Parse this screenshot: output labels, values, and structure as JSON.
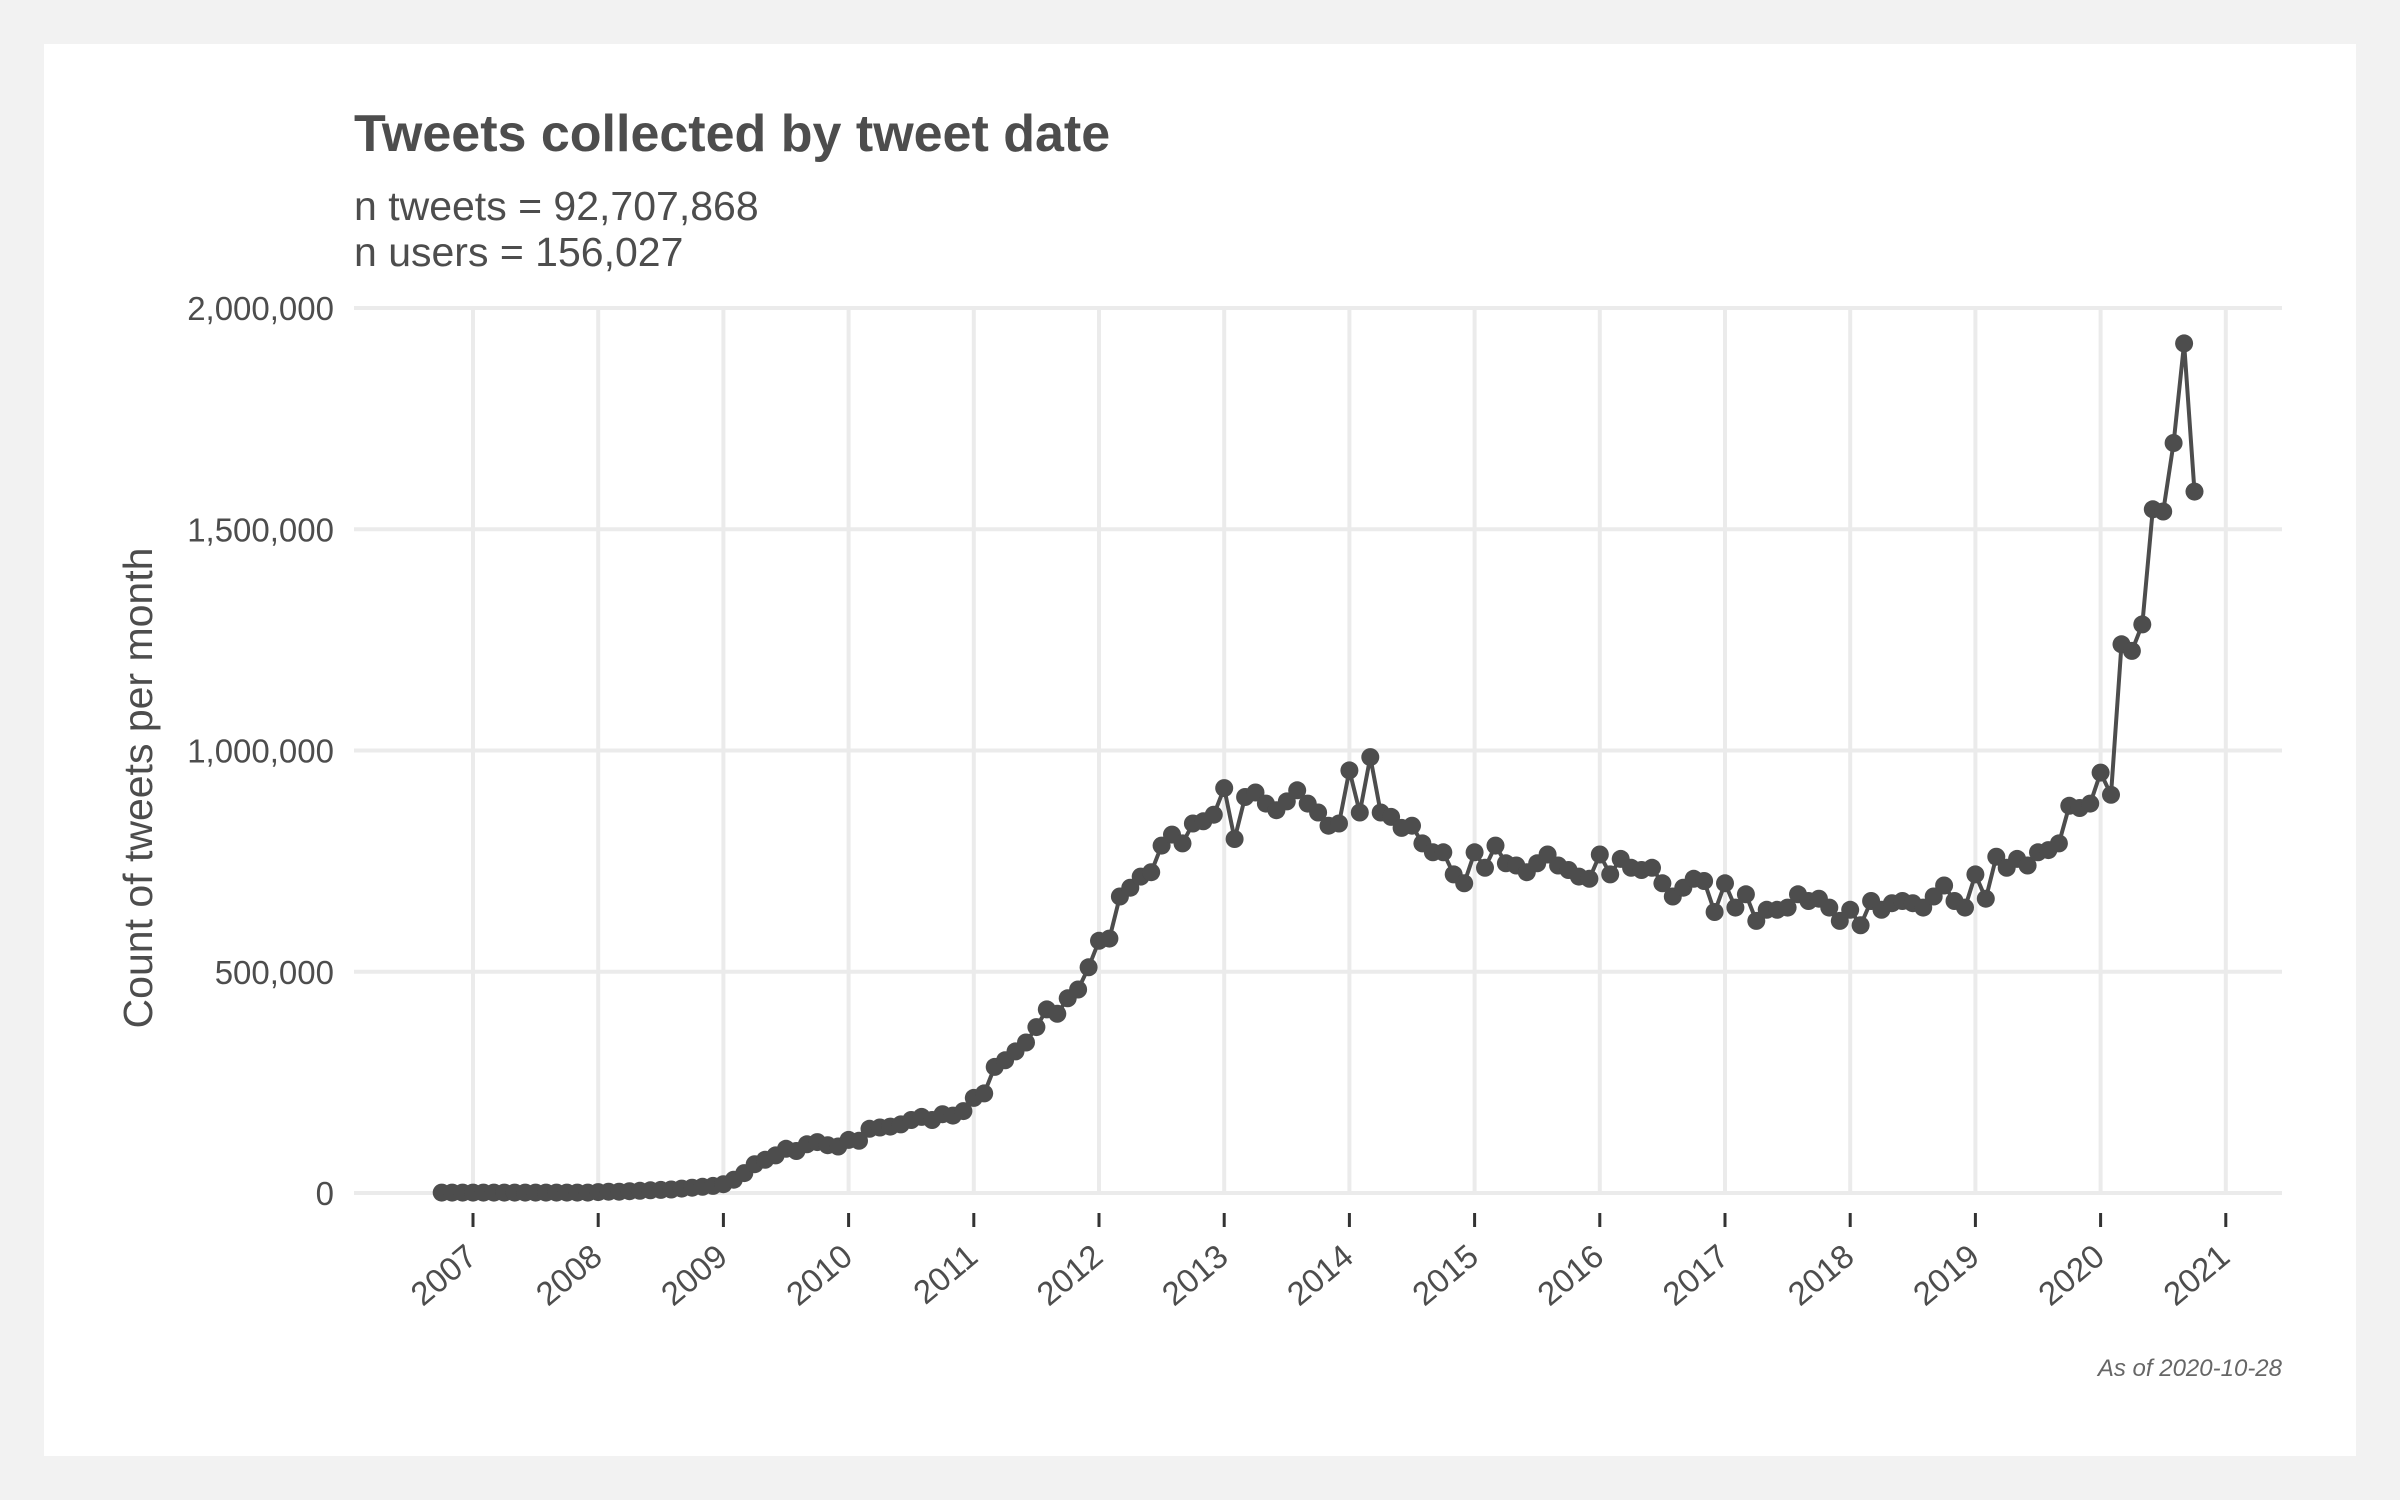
{
  "chart_data": {
    "type": "line",
    "title": "Tweets collected by tweet date",
    "subtitle_lines": [
      "n tweets = 92,707,868",
      "n users = 156,027"
    ],
    "xlabel": "",
    "ylabel": "Count of tweets per month",
    "caption": "As of 2020-10-28",
    "ylim": [
      0,
      2000000
    ],
    "y_ticks": [
      {
        "value": 0,
        "label": "0"
      },
      {
        "value": 500000,
        "label": "500,000"
      },
      {
        "value": 1000000,
        "label": "1,000,000"
      },
      {
        "value": 1500000,
        "label": "1,500,000"
      },
      {
        "value": 2000000,
        "label": "2,000,000"
      }
    ],
    "x_ticks": [
      "2007",
      "2008",
      "2009",
      "2010",
      "2011",
      "2012",
      "2013",
      "2014",
      "2015",
      "2016",
      "2017",
      "2018",
      "2019",
      "2020",
      "2021"
    ],
    "grid": true,
    "start_month": "2006-10",
    "series": [
      {
        "color": "#4d4d4d",
        "values": [
          1000,
          1000,
          1000,
          1000,
          1000,
          1000,
          1000,
          1000,
          1000,
          1000,
          1000,
          1000,
          1000,
          1000,
          1000,
          2000,
          3000,
          3000,
          4000,
          5000,
          6000,
          7000,
          8000,
          10000,
          12000,
          14000,
          16000,
          20000,
          30000,
          45000,
          65000,
          75000,
          85000,
          100000,
          95000,
          110000,
          115000,
          108000,
          105000,
          120000,
          118000,
          145000,
          148000,
          150000,
          155000,
          165000,
          172000,
          165000,
          178000,
          175000,
          185000,
          215000,
          225000,
          285000,
          300000,
          320000,
          340000,
          375000,
          415000,
          405000,
          440000,
          460000,
          510000,
          570000,
          575000,
          670000,
          690000,
          715000,
          725000,
          785000,
          810000,
          790000,
          835000,
          840000,
          855000,
          915000,
          800000,
          895000,
          905000,
          880000,
          865000,
          885000,
          910000,
          880000,
          860000,
          830000,
          835000,
          955000,
          860000,
          985000,
          860000,
          850000,
          825000,
          830000,
          790000,
          770000,
          770000,
          720000,
          700000,
          770000,
          735000,
          785000,
          745000,
          740000,
          725000,
          745000,
          765000,
          740000,
          730000,
          715000,
          710000,
          765000,
          720000,
          755000,
          735000,
          730000,
          735000,
          700000,
          670000,
          690000,
          710000,
          705000,
          635000,
          700000,
          645000,
          675000,
          615000,
          640000,
          640000,
          645000,
          675000,
          660000,
          665000,
          645000,
          615000,
          640000,
          605000,
          660000,
          640000,
          655000,
          660000,
          655000,
          645000,
          670000,
          695000,
          660000,
          645000,
          720000,
          665000,
          760000,
          735000,
          755000,
          740000,
          770000,
          775000,
          790000,
          875000,
          870000,
          880000,
          950000,
          900000,
          1240000,
          1225000,
          1285000,
          1545000,
          1540000,
          1695000,
          1920000,
          1585000
        ]
      }
    ]
  }
}
